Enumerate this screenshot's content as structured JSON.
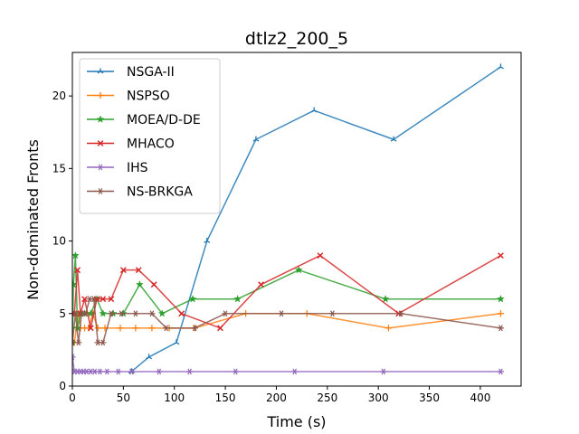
{
  "chart_data": {
    "type": "line",
    "title": "dtlz2_200_5",
    "xlabel": "Time (s)",
    "ylabel": "Non-dominated Fronts",
    "xlim": [
      0,
      440
    ],
    "ylim": [
      0,
      23
    ],
    "xticks": [
      0,
      50,
      100,
      150,
      200,
      250,
      300,
      350,
      400
    ],
    "yticks": [
      0,
      5,
      10,
      15,
      20
    ],
    "grid": false,
    "legend_position": "top-left",
    "series": [
      {
        "name": "NSGA-II",
        "color": "#1f77b4",
        "marker": "tri-up",
        "points": [
          [
            58,
            1
          ],
          [
            75,
            2
          ],
          [
            102,
            3
          ],
          [
            132,
            10
          ],
          [
            180,
            17
          ],
          [
            237,
            19
          ],
          [
            315,
            17
          ],
          [
            420,
            22
          ]
        ]
      },
      {
        "name": "NSPSO",
        "color": "#ff7f0e",
        "marker": "plus",
        "points": [
          [
            0,
            3
          ],
          [
            2,
            3
          ],
          [
            4,
            4
          ],
          [
            6,
            5
          ],
          [
            8,
            4
          ],
          [
            12,
            4
          ],
          [
            16,
            4
          ],
          [
            20,
            5
          ],
          [
            25,
            4
          ],
          [
            32,
            4
          ],
          [
            47,
            4
          ],
          [
            62,
            4
          ],
          [
            78,
            4
          ],
          [
            95,
            4
          ],
          [
            120,
            4
          ],
          [
            170,
            5
          ],
          [
            230,
            5
          ],
          [
            310,
            4
          ],
          [
            420,
            5
          ]
        ]
      },
      {
        "name": "MOEA/D-DE",
        "color": "#2ca02c",
        "marker": "star",
        "points": [
          [
            0,
            3
          ],
          [
            1,
            7
          ],
          [
            3,
            9
          ],
          [
            5,
            4
          ],
          [
            8,
            5
          ],
          [
            12,
            5
          ],
          [
            18,
            5
          ],
          [
            24,
            6
          ],
          [
            30,
            5
          ],
          [
            40,
            5
          ],
          [
            50,
            5
          ],
          [
            66,
            7
          ],
          [
            88,
            5
          ],
          [
            118,
            6
          ],
          [
            162,
            6
          ],
          [
            222,
            8
          ],
          [
            307,
            6
          ],
          [
            420,
            6
          ]
        ]
      },
      {
        "name": "MHACO",
        "color": "#d62728",
        "marker": "x",
        "points": [
          [
            0,
            5
          ],
          [
            2,
            5
          ],
          [
            5,
            8
          ],
          [
            8,
            5
          ],
          [
            12,
            6
          ],
          [
            18,
            4
          ],
          [
            24,
            6
          ],
          [
            30,
            6
          ],
          [
            38,
            6
          ],
          [
            50,
            8
          ],
          [
            65,
            8
          ],
          [
            80,
            7
          ],
          [
            107,
            5
          ],
          [
            145,
            4
          ],
          [
            185,
            7
          ],
          [
            243,
            9
          ],
          [
            320,
            5
          ],
          [
            420,
            9
          ]
        ]
      },
      {
        "name": "IHS",
        "color": "#9467bd",
        "marker": "asterisk",
        "points": [
          [
            0,
            2
          ],
          [
            2,
            1
          ],
          [
            5,
            1
          ],
          [
            8,
            1
          ],
          [
            11,
            1
          ],
          [
            14,
            1
          ],
          [
            18,
            1
          ],
          [
            22,
            1
          ],
          [
            27,
            1
          ],
          [
            34,
            1
          ],
          [
            45,
            1
          ],
          [
            58,
            1
          ],
          [
            85,
            1
          ],
          [
            115,
            1
          ],
          [
            160,
            1
          ],
          [
            218,
            1
          ],
          [
            305,
            1
          ],
          [
            420,
            1
          ]
        ]
      },
      {
        "name": "NS-BRKGA",
        "color": "#8c564b",
        "marker": "asterisk",
        "points": [
          [
            0,
            3
          ],
          [
            3,
            5
          ],
          [
            6,
            3
          ],
          [
            9,
            5
          ],
          [
            13,
            5
          ],
          [
            17,
            6
          ],
          [
            21,
            6
          ],
          [
            25,
            3
          ],
          [
            30,
            3
          ],
          [
            38,
            5
          ],
          [
            48,
            5
          ],
          [
            62,
            5
          ],
          [
            78,
            5
          ],
          [
            92,
            4
          ],
          [
            120,
            4
          ],
          [
            150,
            5
          ],
          [
            205,
            5
          ],
          [
            255,
            5
          ],
          [
            322,
            5
          ],
          [
            420,
            4
          ]
        ]
      }
    ]
  }
}
